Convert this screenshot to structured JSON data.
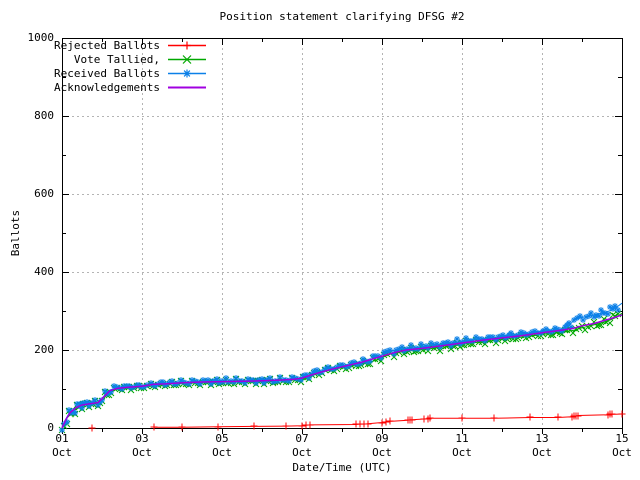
{
  "chart_data": {
    "type": "line",
    "title": "Position statement clarifying DFSG #2",
    "xlabel": "Date/Time (UTC)",
    "ylabel": "Ballots",
    "xlim": [
      1,
      15
    ],
    "ylim": [
      0,
      1000
    ],
    "grid": true,
    "legend_position": "top-left",
    "axis_color": "#000000",
    "grid_color": "#b4b4b4",
    "x_ticks": [
      {
        "v": 1,
        "label": "01",
        "sublabel": "Oct"
      },
      {
        "v": 3,
        "label": "03",
        "sublabel": "Oct"
      },
      {
        "v": 5,
        "label": "05",
        "sublabel": "Oct"
      },
      {
        "v": 7,
        "label": "07",
        "sublabel": "Oct"
      },
      {
        "v": 9,
        "label": "09",
        "sublabel": "Oct"
      },
      {
        "v": 11,
        "label": "11",
        "sublabel": "Oct"
      },
      {
        "v": 13,
        "label": "13",
        "sublabel": "Oct"
      },
      {
        "v": 15,
        "label": "15",
        "sublabel": "Oct"
      }
    ],
    "x_minor_ticks": [
      2,
      4,
      6,
      8,
      10,
      12,
      14
    ],
    "y_ticks": [
      {
        "v": 0,
        "label": "0"
      },
      {
        "v": 200,
        "label": "200"
      },
      {
        "v": 400,
        "label": "400"
      },
      {
        "v": 600,
        "label": "600"
      },
      {
        "v": 800,
        "label": "800"
      },
      {
        "v": 1000,
        "label": "1000"
      }
    ],
    "y_minor_ticks": [
      100,
      300,
      500,
      700,
      900
    ],
    "series": [
      {
        "name": "Rejected Ballots",
        "color": "#ff0000",
        "marker": "plus",
        "dense_markers": false,
        "points": [
          [
            1.75,
            0
          ],
          null,
          [
            3.3,
            2
          ],
          [
            4,
            2
          ],
          [
            4.9,
            3
          ],
          [
            5.8,
            4
          ],
          [
            6.6,
            5
          ],
          [
            7,
            6
          ],
          [
            7.1,
            7
          ],
          [
            7.2,
            8
          ],
          [
            8.35,
            9
          ],
          [
            8.45,
            10
          ],
          [
            8.55,
            10
          ],
          [
            8.65,
            11
          ],
          [
            9,
            14
          ],
          [
            9.1,
            16
          ],
          [
            9.2,
            17
          ],
          [
            9.65,
            20
          ],
          [
            9.7,
            21
          ],
          [
            9.75,
            21
          ],
          [
            10.05,
            23
          ],
          [
            10.15,
            24
          ],
          [
            10.2,
            25
          ],
          [
            11,
            25
          ],
          [
            11.8,
            25
          ],
          [
            12.7,
            27
          ],
          [
            13.4,
            27
          ],
          [
            13.75,
            29
          ],
          [
            13.8,
            30
          ],
          [
            13.85,
            31
          ],
          [
            13.9,
            32
          ],
          [
            14.65,
            34
          ],
          [
            14.7,
            35
          ],
          [
            14.75,
            35
          ],
          [
            15,
            36
          ]
        ]
      },
      {
        "name": "Vote Tallied,",
        "color": "#00a800",
        "marker": "cross",
        "dense_markers": true,
        "points": [
          [
            1,
            0
          ],
          [
            1.05,
            8
          ],
          [
            1.1,
            20
          ],
          [
            1.15,
            30
          ],
          [
            1.2,
            37
          ],
          [
            1.3,
            47
          ],
          [
            1.4,
            53
          ],
          [
            1.5,
            58
          ],
          [
            1.6,
            60
          ],
          [
            1.7,
            61
          ],
          [
            1.8,
            62
          ],
          [
            1.9,
            64
          ],
          [
            2,
            73
          ],
          [
            2.1,
            86
          ],
          [
            2.2,
            94
          ],
          [
            2.35,
            100
          ],
          [
            2.5,
            102
          ],
          [
            2.7,
            103
          ],
          [
            2.9,
            104
          ],
          [
            3,
            105
          ],
          [
            3.2,
            107
          ],
          [
            3.3,
            110
          ],
          [
            3.5,
            111
          ],
          [
            3.75,
            113
          ],
          [
            4,
            114
          ],
          [
            4.25,
            115
          ],
          [
            4.5,
            116
          ],
          [
            5,
            117
          ],
          [
            5.5,
            118
          ],
          [
            6,
            119
          ],
          [
            6.3,
            120
          ],
          [
            6.6,
            121
          ],
          [
            6.8,
            123
          ],
          [
            7,
            126
          ],
          [
            7.1,
            130
          ],
          [
            7.25,
            135
          ],
          [
            7.4,
            140
          ],
          [
            7.6,
            146
          ],
          [
            7.8,
            151
          ],
          [
            8,
            155
          ],
          [
            8.2,
            158
          ],
          [
            8.4,
            162
          ],
          [
            8.6,
            166
          ],
          [
            8.8,
            172
          ],
          [
            9,
            181
          ],
          [
            9.2,
            189
          ],
          [
            9.4,
            194
          ],
          [
            9.6,
            197
          ],
          [
            9.8,
            199
          ],
          [
            10,
            201
          ],
          [
            10.25,
            204
          ],
          [
            10.5,
            207
          ],
          [
            10.75,
            210
          ],
          [
            11,
            214
          ],
          [
            11.25,
            218
          ],
          [
            11.5,
            221
          ],
          [
            11.75,
            224
          ],
          [
            12,
            228
          ],
          [
            12.25,
            230
          ],
          [
            12.5,
            233
          ],
          [
            12.75,
            236
          ],
          [
            13,
            240
          ],
          [
            13.2,
            242
          ],
          [
            13.4,
            244
          ],
          [
            13.6,
            247
          ],
          [
            13.8,
            251
          ],
          [
            14,
            257
          ],
          [
            14.2,
            262
          ],
          [
            14.4,
            267
          ],
          [
            14.6,
            273
          ],
          [
            14.8,
            281
          ],
          [
            15,
            294
          ]
        ]
      },
      {
        "name": "Received Ballots",
        "color": "#0b80e8",
        "marker": "star",
        "dense_markers": true,
        "points": [
          [
            1,
            2
          ],
          [
            1.05,
            12
          ],
          [
            1.1,
            24
          ],
          [
            1.15,
            33
          ],
          [
            1.2,
            40
          ],
          [
            1.3,
            50
          ],
          [
            1.4,
            56
          ],
          [
            1.5,
            60
          ],
          [
            1.6,
            62
          ],
          [
            1.7,
            63
          ],
          [
            1.8,
            64
          ],
          [
            1.9,
            66
          ],
          [
            2,
            76
          ],
          [
            2.1,
            89
          ],
          [
            2.2,
            97
          ],
          [
            2.35,
            103
          ],
          [
            2.5,
            105
          ],
          [
            2.7,
            106
          ],
          [
            2.9,
            107
          ],
          [
            3,
            108
          ],
          [
            3.2,
            110
          ],
          [
            3.3,
            113
          ],
          [
            3.5,
            114
          ],
          [
            3.75,
            116
          ],
          [
            4,
            117
          ],
          [
            4.25,
            118
          ],
          [
            4.5,
            119
          ],
          [
            5,
            120
          ],
          [
            5.5,
            121
          ],
          [
            6,
            122
          ],
          [
            6.3,
            123
          ],
          [
            6.6,
            124
          ],
          [
            6.8,
            126
          ],
          [
            7,
            129
          ],
          [
            7.1,
            134
          ],
          [
            7.25,
            139
          ],
          [
            7.4,
            144
          ],
          [
            7.6,
            150
          ],
          [
            7.8,
            155
          ],
          [
            8,
            159
          ],
          [
            8.2,
            163
          ],
          [
            8.4,
            167
          ],
          [
            8.6,
            171
          ],
          [
            8.8,
            178
          ],
          [
            9,
            188
          ],
          [
            9.2,
            196
          ],
          [
            9.4,
            201
          ],
          [
            9.6,
            204
          ],
          [
            9.8,
            206
          ],
          [
            10,
            208
          ],
          [
            10.25,
            212
          ],
          [
            10.5,
            215
          ],
          [
            10.75,
            218
          ],
          [
            11,
            222
          ],
          [
            11.25,
            226
          ],
          [
            11.5,
            229
          ],
          [
            11.75,
            232
          ],
          [
            12,
            235
          ],
          [
            12.25,
            238
          ],
          [
            12.5,
            241
          ],
          [
            12.75,
            244
          ],
          [
            13,
            248
          ],
          [
            13.2,
            250
          ],
          [
            13.4,
            252
          ],
          [
            13.6,
            254
          ],
          [
            13.7,
            266
          ],
          [
            13.8,
            276
          ],
          [
            14,
            284
          ],
          [
            14.2,
            288
          ],
          [
            14.4,
            292
          ],
          [
            14.6,
            297
          ],
          [
            14.8,
            305
          ],
          [
            15,
            320
          ]
        ]
      },
      {
        "name": "Acknowledgements",
        "color": "#a000e0",
        "marker": "none",
        "dense_markers": false,
        "points": [
          [
            1,
            0
          ],
          [
            1.1,
            22
          ],
          [
            1.2,
            39
          ],
          [
            1.35,
            52
          ],
          [
            1.5,
            59
          ],
          [
            1.7,
            62
          ],
          [
            1.9,
            65
          ],
          [
            2.05,
            80
          ],
          [
            2.2,
            96
          ],
          [
            2.4,
            102
          ],
          [
            2.7,
            105
          ],
          [
            3,
            107
          ],
          [
            3.3,
            112
          ],
          [
            3.6,
            113
          ],
          [
            4,
            116
          ],
          [
            4.5,
            118
          ],
          [
            5,
            119
          ],
          [
            5.5,
            120
          ],
          [
            6,
            121
          ],
          [
            6.5,
            123
          ],
          [
            6.8,
            125
          ],
          [
            7,
            128
          ],
          [
            7.2,
            135
          ],
          [
            7.5,
            144
          ],
          [
            7.8,
            152
          ],
          [
            8,
            157
          ],
          [
            8.5,
            169
          ],
          [
            9,
            184
          ],
          [
            9.3,
            193
          ],
          [
            9.6,
            200
          ],
          [
            10,
            204
          ],
          [
            10.5,
            211
          ],
          [
            11,
            218
          ],
          [
            11.5,
            225
          ],
          [
            12,
            231
          ],
          [
            12.5,
            237
          ],
          [
            13,
            244
          ],
          [
            13.5,
            251
          ],
          [
            13.8,
            256
          ],
          [
            14,
            262
          ],
          [
            14.3,
            268
          ],
          [
            14.6,
            277
          ],
          [
            14.8,
            283
          ],
          [
            15,
            290
          ]
        ]
      }
    ]
  }
}
